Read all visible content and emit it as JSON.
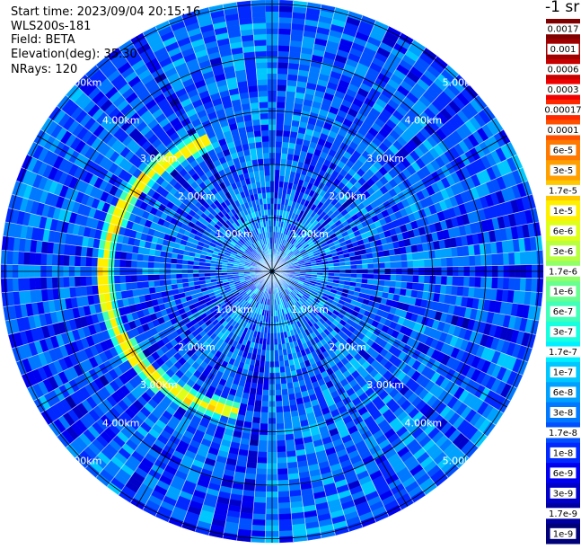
{
  "info": {
    "start_time": "Start time: 2023/09/04 20:15:16",
    "instrument": "WLS200s-181",
    "field": "Field: BETA",
    "elevation": "Elevation(deg): 35.30",
    "nrays": "NRays: 120"
  },
  "colorbar": {
    "unit": "-1 sr",
    "labels": [
      "0.0017",
      "0.001",
      "0.0006",
      "0.0003",
      "0.00017",
      "0.0001",
      "6e-5",
      "3e-5",
      "1.7e-5",
      "1e-5",
      "6e-6",
      "3e-6",
      "1.7e-6",
      "1e-6",
      "6e-7",
      "3e-7",
      "1.7e-7",
      "1e-7",
      "6e-8",
      "3e-8",
      "1.7e-8",
      "1e-8",
      "6e-9",
      "3e-9",
      "1.7e-9",
      "1e-9"
    ],
    "colors": [
      "#800000",
      "#a00000",
      "#c80000",
      "#f00000",
      "#ff2800",
      "#ff5000",
      "#ff7800",
      "#ffa000",
      "#ffc800",
      "#fff000",
      "#e0ff18",
      "#b8ff40",
      "#90ff68",
      "#68ff90",
      "#40ffb8",
      "#18ffe0",
      "#00f0ff",
      "#00c8ff",
      "#00a0ff",
      "#0078ff",
      "#0050ff",
      "#0028ff",
      "#0000f0",
      "#0000c8",
      "#0000a0",
      "#000078"
    ]
  },
  "chart_data": {
    "type": "polar",
    "title": "",
    "field": "BETA",
    "units": "-1 sr",
    "elevation_deg": 35.3,
    "n_rays": 120,
    "range_rings_km": [
      "1.00km",
      "2.00km",
      "3.00km",
      "4.00km",
      "5.00km"
    ],
    "color_scale": {
      "min": 1e-09,
      "max": 0.0017,
      "scale": "log"
    },
    "background_beta_typical": 2e-08,
    "high_backscatter_arc": {
      "range_km": [
        2.6,
        3.2
      ],
      "azimuth_deg": [
        195,
        335
      ],
      "beta_peak": 1e-05
    }
  }
}
